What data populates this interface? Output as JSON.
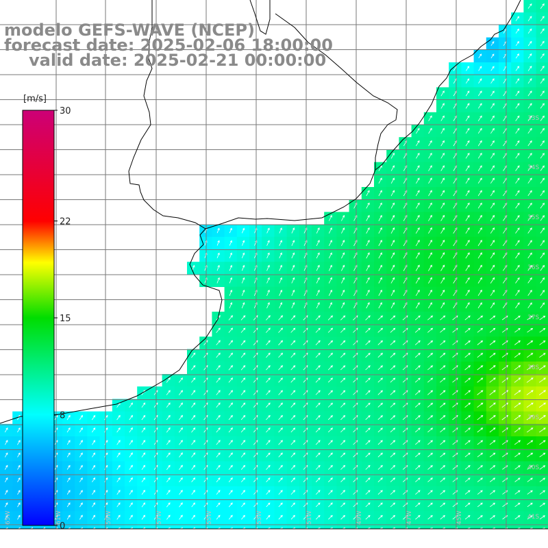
{
  "header": {
    "line1": "modelo GEFS-WAVE (NCEP)",
    "line2": "forecast date: 2025-02-06 18:00:00",
    "line3": "valid date: 2025-02-21 00:00:00"
  },
  "colorbar": {
    "unit": "[m/s]",
    "min": 0,
    "max": 30,
    "tick_values": [
      0,
      8,
      15,
      22,
      30
    ],
    "tick_labels": [
      "0",
      "8",
      "15",
      "22",
      "30"
    ],
    "stops": [
      {
        "v": 0,
        "color": "#0000ff"
      },
      {
        "v": 8,
        "color": "#00ffff"
      },
      {
        "v": 15,
        "color": "#00dd00"
      },
      {
        "v": 19,
        "color": "#ffff00"
      },
      {
        "v": 22,
        "color": "#ff0000"
      },
      {
        "v": 30,
        "color": "#cc0077"
      }
    ]
  },
  "map": {
    "lon_range": [
      -65,
      -44
    ],
    "lat_range": [
      -41.5,
      -30.5
    ],
    "lat_labels": [
      "33S",
      "34S",
      "35S",
      "36S",
      "37S",
      "38S",
      "39S",
      "40S",
      "41S"
    ],
    "lon_labels": [
      "65W",
      "61W",
      "59W",
      "57W",
      "55W",
      "53W",
      "51W",
      "49W",
      "47W",
      "45W"
    ],
    "wind_field_note": "10 m wind speed (m/s) with direction arrows"
  }
}
